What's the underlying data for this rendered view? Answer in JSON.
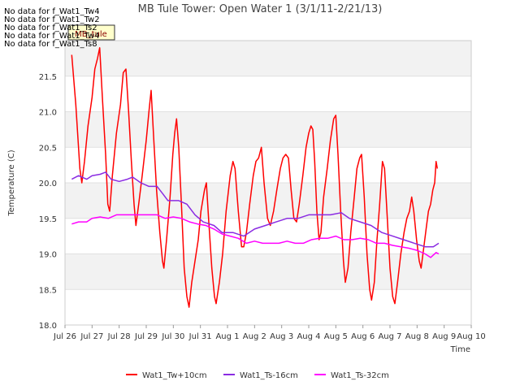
{
  "chart_data": {
    "type": "line",
    "title": "MB Tule Tower: Open Water 1 (3/1/11-2/21/13)",
    "xlabel": "Time",
    "ylabel": "Temperature (C)",
    "ylim": [
      18.0,
      22.0
    ],
    "xlim": [
      0,
      15
    ],
    "grid": "horizontal bands",
    "x_ticks": [
      "Jul 26",
      "Jul 27",
      "Jul 28",
      "Jul 29",
      "Jul 30",
      "Jul 31",
      "Aug 1",
      "Aug 2",
      "Aug 3",
      "Aug 4",
      "Aug 5",
      "Aug 6",
      "Aug 7",
      "Aug 8",
      "Aug 9",
      "Aug 10"
    ],
    "y_ticks": [
      "18.0",
      "18.5",
      "19.0",
      "19.5",
      "20.0",
      "20.5",
      "21.0",
      "21.5"
    ],
    "legend_position": "bottom",
    "series": [
      {
        "name": "Wat1_Tw+10cm",
        "color": "#ff0000",
        "points": [
          [
            0.25,
            21.8
          ],
          [
            0.4,
            21.1
          ],
          [
            0.55,
            20.2
          ],
          [
            0.62,
            20.0
          ],
          [
            0.72,
            20.3
          ],
          [
            0.85,
            20.8
          ],
          [
            1.0,
            21.2
          ],
          [
            1.1,
            21.6
          ],
          [
            1.2,
            21.75
          ],
          [
            1.28,
            21.9
          ],
          [
            1.38,
            21.2
          ],
          [
            1.5,
            20.4
          ],
          [
            1.58,
            19.7
          ],
          [
            1.65,
            19.6
          ],
          [
            1.75,
            20.1
          ],
          [
            1.9,
            20.7
          ],
          [
            2.05,
            21.1
          ],
          [
            2.15,
            21.55
          ],
          [
            2.25,
            21.6
          ],
          [
            2.35,
            21.0
          ],
          [
            2.45,
            20.3
          ],
          [
            2.55,
            19.7
          ],
          [
            2.62,
            19.4
          ],
          [
            2.72,
            19.7
          ],
          [
            2.85,
            20.1
          ],
          [
            3.0,
            20.6
          ],
          [
            3.1,
            21.0
          ],
          [
            3.18,
            21.3
          ],
          [
            3.28,
            20.6
          ],
          [
            3.38,
            19.9
          ],
          [
            3.5,
            19.3
          ],
          [
            3.6,
            18.9
          ],
          [
            3.65,
            18.8
          ],
          [
            3.75,
            19.2
          ],
          [
            3.88,
            19.8
          ],
          [
            3.98,
            20.4
          ],
          [
            4.05,
            20.7
          ],
          [
            4.12,
            20.9
          ],
          [
            4.2,
            20.5
          ],
          [
            4.3,
            19.7
          ],
          [
            4.4,
            18.8
          ],
          [
            4.5,
            18.4
          ],
          [
            4.58,
            18.25
          ],
          [
            4.68,
            18.6
          ],
          [
            4.8,
            18.9
          ],
          [
            4.92,
            19.2
          ],
          [
            5.02,
            19.6
          ],
          [
            5.15,
            19.9
          ],
          [
            5.22,
            20.0
          ],
          [
            5.3,
            19.5
          ],
          [
            5.42,
            18.8
          ],
          [
            5.52,
            18.4
          ],
          [
            5.58,
            18.3
          ],
          [
            5.7,
            18.6
          ],
          [
            5.82,
            19.0
          ],
          [
            5.95,
            19.6
          ],
          [
            6.1,
            20.1
          ],
          [
            6.2,
            20.3
          ],
          [
            6.28,
            20.2
          ],
          [
            6.4,
            19.6
          ],
          [
            6.52,
            19.1
          ],
          [
            6.6,
            19.1
          ],
          [
            6.7,
            19.3
          ],
          [
            6.82,
            19.7
          ],
          [
            6.95,
            20.1
          ],
          [
            7.05,
            20.3
          ],
          [
            7.15,
            20.35
          ],
          [
            7.25,
            20.5
          ],
          [
            7.35,
            20.0
          ],
          [
            7.48,
            19.5
          ],
          [
            7.58,
            19.4
          ],
          [
            7.7,
            19.6
          ],
          [
            7.82,
            19.9
          ],
          [
            7.95,
            20.2
          ],
          [
            8.05,
            20.35
          ],
          [
            8.15,
            20.4
          ],
          [
            8.25,
            20.35
          ],
          [
            8.35,
            19.9
          ],
          [
            8.45,
            19.5
          ],
          [
            8.55,
            19.45
          ],
          [
            8.65,
            19.7
          ],
          [
            8.78,
            20.1
          ],
          [
            8.9,
            20.5
          ],
          [
            9.0,
            20.7
          ],
          [
            9.08,
            20.8
          ],
          [
            9.15,
            20.75
          ],
          [
            9.22,
            20.3
          ],
          [
            9.3,
            19.6
          ],
          [
            9.38,
            19.2
          ],
          [
            9.45,
            19.3
          ],
          [
            9.55,
            19.8
          ],
          [
            9.68,
            20.2
          ],
          [
            9.8,
            20.6
          ],
          [
            9.92,
            20.9
          ],
          [
            10.0,
            20.95
          ],
          [
            10.08,
            20.4
          ],
          [
            10.18,
            19.6
          ],
          [
            10.28,
            18.9
          ],
          [
            10.35,
            18.6
          ],
          [
            10.45,
            18.8
          ],
          [
            10.55,
            19.3
          ],
          [
            10.68,
            19.8
          ],
          [
            10.78,
            20.2
          ],
          [
            10.88,
            20.35
          ],
          [
            10.95,
            20.4
          ],
          [
            11.05,
            19.8
          ],
          [
            11.15,
            19.0
          ],
          [
            11.25,
            18.5
          ],
          [
            11.32,
            18.35
          ],
          [
            11.42,
            18.6
          ],
          [
            11.52,
            19.2
          ],
          [
            11.62,
            19.7
          ],
          [
            11.72,
            20.3
          ],
          [
            11.8,
            20.2
          ],
          [
            11.9,
            19.5
          ],
          [
            12.0,
            18.8
          ],
          [
            12.1,
            18.4
          ],
          [
            12.18,
            18.3
          ],
          [
            12.28,
            18.6
          ],
          [
            12.4,
            19.0
          ],
          [
            12.52,
            19.3
          ],
          [
            12.62,
            19.5
          ],
          [
            12.72,
            19.6
          ],
          [
            12.8,
            19.8
          ],
          [
            12.88,
            19.6
          ],
          [
            12.98,
            19.2
          ],
          [
            13.08,
            18.9
          ],
          [
            13.15,
            18.8
          ],
          [
            13.25,
            19.1
          ],
          [
            13.35,
            19.4
          ],
          [
            13.42,
            19.6
          ],
          [
            13.5,
            19.7
          ],
          [
            13.58,
            19.9
          ],
          [
            13.65,
            20.0
          ],
          [
            13.7,
            20.3
          ],
          [
            13.75,
            20.2
          ]
        ]
      },
      {
        "name": "Wat1_Ts-16cm",
        "color": "#8a2be2",
        "points": [
          [
            0.25,
            20.05
          ],
          [
            0.5,
            20.1
          ],
          [
            0.8,
            20.05
          ],
          [
            1.0,
            20.1
          ],
          [
            1.3,
            20.12
          ],
          [
            1.5,
            20.15
          ],
          [
            1.7,
            20.05
          ],
          [
            2.0,
            20.02
          ],
          [
            2.3,
            20.05
          ],
          [
            2.5,
            20.08
          ],
          [
            2.8,
            20.0
          ],
          [
            3.1,
            19.95
          ],
          [
            3.4,
            19.95
          ],
          [
            3.6,
            19.85
          ],
          [
            3.8,
            19.75
          ],
          [
            4.2,
            19.75
          ],
          [
            4.5,
            19.7
          ],
          [
            4.8,
            19.55
          ],
          [
            5.1,
            19.45
          ],
          [
            5.5,
            19.4
          ],
          [
            5.8,
            19.3
          ],
          [
            6.2,
            19.3
          ],
          [
            6.6,
            19.25
          ],
          [
            7.0,
            19.35
          ],
          [
            7.4,
            19.4
          ],
          [
            7.8,
            19.45
          ],
          [
            8.2,
            19.5
          ],
          [
            8.6,
            19.5
          ],
          [
            9.0,
            19.55
          ],
          [
            9.4,
            19.55
          ],
          [
            9.8,
            19.55
          ],
          [
            10.2,
            19.58
          ],
          [
            10.5,
            19.5
          ],
          [
            10.9,
            19.45
          ],
          [
            11.3,
            19.4
          ],
          [
            11.7,
            19.3
          ],
          [
            12.1,
            19.25
          ],
          [
            12.5,
            19.2
          ],
          [
            12.9,
            19.15
          ],
          [
            13.3,
            19.1
          ],
          [
            13.6,
            19.1
          ],
          [
            13.8,
            19.15
          ]
        ]
      },
      {
        "name": "Wat1_Ts-32cm",
        "color": "#ff00ff",
        "points": [
          [
            0.25,
            19.42
          ],
          [
            0.5,
            19.45
          ],
          [
            0.8,
            19.45
          ],
          [
            1.0,
            19.5
          ],
          [
            1.3,
            19.52
          ],
          [
            1.6,
            19.5
          ],
          [
            1.9,
            19.55
          ],
          [
            2.2,
            19.55
          ],
          [
            2.5,
            19.55
          ],
          [
            2.8,
            19.55
          ],
          [
            3.1,
            19.55
          ],
          [
            3.4,
            19.55
          ],
          [
            3.7,
            19.5
          ],
          [
            4.0,
            19.52
          ],
          [
            4.3,
            19.5
          ],
          [
            4.6,
            19.45
          ],
          [
            4.9,
            19.42
          ],
          [
            5.2,
            19.4
          ],
          [
            5.5,
            19.35
          ],
          [
            5.8,
            19.28
          ],
          [
            6.1,
            19.25
          ],
          [
            6.4,
            19.22
          ],
          [
            6.7,
            19.15
          ],
          [
            7.0,
            19.18
          ],
          [
            7.3,
            19.15
          ],
          [
            7.6,
            19.15
          ],
          [
            7.9,
            19.15
          ],
          [
            8.2,
            19.18
          ],
          [
            8.5,
            19.15
          ],
          [
            8.8,
            19.15
          ],
          [
            9.1,
            19.2
          ],
          [
            9.4,
            19.22
          ],
          [
            9.7,
            19.22
          ],
          [
            10.0,
            19.25
          ],
          [
            10.3,
            19.2
          ],
          [
            10.6,
            19.2
          ],
          [
            10.9,
            19.22
          ],
          [
            11.2,
            19.2
          ],
          [
            11.5,
            19.15
          ],
          [
            11.8,
            19.15
          ],
          [
            12.1,
            19.12
          ],
          [
            12.4,
            19.1
          ],
          [
            12.7,
            19.08
          ],
          [
            13.0,
            19.05
          ],
          [
            13.3,
            19.0
          ],
          [
            13.5,
            18.95
          ],
          [
            13.7,
            19.02
          ],
          [
            13.8,
            19.0
          ]
        ]
      }
    ]
  },
  "no_data_messages": [
    "No data for f_Wat1_Tw4",
    "No data for f_Wat1_Tw2",
    "No data for f_Wat1_Ts2",
    "No data for f_Wat1_Tw4",
    "No data for f_Wat1_Ts8"
  ],
  "site_badge": "MB_tule"
}
